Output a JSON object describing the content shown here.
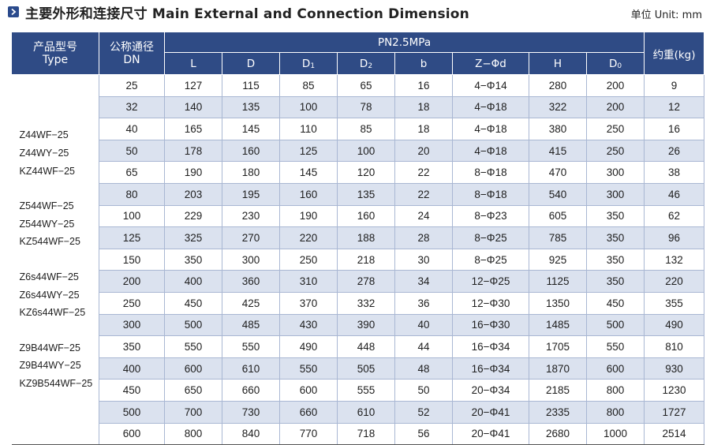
{
  "header": {
    "title": "主要外形和连接尺寸 Main External and Connection Dimension",
    "unit": "单位 Unit: mm"
  },
  "table": {
    "type_header_cn": "产品型号",
    "type_header_en": "Type",
    "dn_header_cn": "公称通径",
    "dn_header_en": "DN",
    "pressure_header": "PN2.5MPa",
    "weight_header": "约重(kg)",
    "sub_headers": [
      "L",
      "D",
      "D1",
      "D2",
      "b",
      "Z−Φd",
      "H",
      "D0"
    ],
    "type_groups": [
      [
        "Z44WF−25",
        "Z44WY−25",
        "KZ44WF−25"
      ],
      [
        "Z544WF−25",
        "Z544WY−25",
        "KZ544WF−25"
      ],
      [
        "Z6s44WF−25",
        "Z6s44WY−25",
        "KZ6s44WF−25"
      ],
      [
        "Z9B44WF−25",
        "Z9B44WY−25",
        "KZ9B544WF−25"
      ]
    ],
    "rows": [
      [
        "25",
        "127",
        "115",
        "85",
        "65",
        "16",
        "4−Φ14",
        "280",
        "200",
        "9"
      ],
      [
        "32",
        "140",
        "135",
        "100",
        "78",
        "18",
        "4−Φ18",
        "322",
        "200",
        "12"
      ],
      [
        "40",
        "165",
        "145",
        "110",
        "85",
        "18",
        "4−Φ18",
        "380",
        "250",
        "16"
      ],
      [
        "50",
        "178",
        "160",
        "125",
        "100",
        "20",
        "4−Φ18",
        "415",
        "250",
        "26"
      ],
      [
        "65",
        "190",
        "180",
        "145",
        "120",
        "22",
        "8−Φ18",
        "470",
        "300",
        "38"
      ],
      [
        "80",
        "203",
        "195",
        "160",
        "135",
        "22",
        "8−Φ18",
        "540",
        "300",
        "46"
      ],
      [
        "100",
        "229",
        "230",
        "190",
        "160",
        "24",
        "8−Φ23",
        "605",
        "350",
        "62"
      ],
      [
        "125",
        "325",
        "270",
        "220",
        "188",
        "28",
        "8−Φ25",
        "785",
        "350",
        "96"
      ],
      [
        "150",
        "350",
        "300",
        "250",
        "218",
        "30",
        "8−Φ25",
        "925",
        "350",
        "132"
      ],
      [
        "200",
        "400",
        "360",
        "310",
        "278",
        "34",
        "12−Φ25",
        "1125",
        "350",
        "220"
      ],
      [
        "250",
        "450",
        "425",
        "370",
        "332",
        "36",
        "12−Φ30",
        "1350",
        "450",
        "355"
      ],
      [
        "300",
        "500",
        "485",
        "430",
        "390",
        "40",
        "16−Φ30",
        "1485",
        "500",
        "490"
      ],
      [
        "350",
        "550",
        "550",
        "490",
        "448",
        "44",
        "16−Φ34",
        "1705",
        "550",
        "810"
      ],
      [
        "400",
        "600",
        "610",
        "550",
        "505",
        "48",
        "16−Φ34",
        "1870",
        "600",
        "930"
      ],
      [
        "450",
        "650",
        "660",
        "600",
        "555",
        "50",
        "20−Φ34",
        "2185",
        "800",
        "1230"
      ],
      [
        "500",
        "700",
        "730",
        "660",
        "610",
        "52",
        "20−Φ41",
        "2335",
        "800",
        "1727"
      ],
      [
        "600",
        "800",
        "840",
        "770",
        "718",
        "56",
        "20−Φ41",
        "2680",
        "1000",
        "2514"
      ]
    ]
  }
}
